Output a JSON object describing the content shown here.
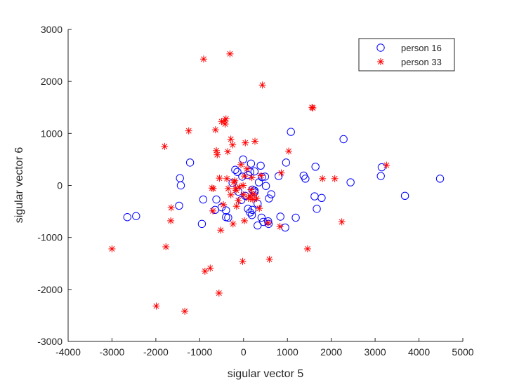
{
  "chart_data": {
    "type": "scatter",
    "xlabel": "sigular vector 5",
    "ylabel": "sigular vector 6",
    "xlim": [
      -4000,
      5000
    ],
    "ylim": [
      -3000,
      3000
    ],
    "xticks": [
      -4000,
      -3000,
      -2000,
      -1000,
      0,
      1000,
      2000,
      3000,
      4000,
      5000
    ],
    "yticks": [
      -3000,
      -2000,
      -1000,
      0,
      1000,
      2000,
      3000
    ],
    "grid": false,
    "legend_position": "top-right",
    "series": [
      {
        "name": "person 16",
        "marker": "circle",
        "color": "#0000ff",
        "points": [
          [
            -2650,
            -610
          ],
          [
            -2450,
            -590
          ],
          [
            -1450,
            140
          ],
          [
            -1430,
            0
          ],
          [
            -1470,
            -390
          ],
          [
            -1220,
            440
          ],
          [
            -920,
            -270
          ],
          [
            -950,
            -740
          ],
          [
            -650,
            -470
          ],
          [
            -620,
            -270
          ],
          [
            -500,
            -420
          ],
          [
            -400,
            -610
          ],
          [
            -400,
            -480
          ],
          [
            -350,
            -620
          ],
          [
            -250,
            50
          ],
          [
            -190,
            300
          ],
          [
            -140,
            260
          ],
          [
            -120,
            -120
          ],
          [
            -10,
            500
          ],
          [
            -30,
            170
          ],
          [
            -50,
            -280
          ],
          [
            40,
            -200
          ],
          [
            100,
            200
          ],
          [
            100,
            -450
          ],
          [
            150,
            260
          ],
          [
            150,
            -520
          ],
          [
            170,
            420
          ],
          [
            190,
            -570
          ],
          [
            200,
            -470
          ],
          [
            200,
            -80
          ],
          [
            250,
            -100
          ],
          [
            250,
            -130
          ],
          [
            250,
            270
          ],
          [
            320,
            -350
          ],
          [
            320,
            -770
          ],
          [
            350,
            60
          ],
          [
            390,
            380
          ],
          [
            420,
            160
          ],
          [
            410,
            -620
          ],
          [
            450,
            -700
          ],
          [
            490,
            170
          ],
          [
            510,
            -10
          ],
          [
            560,
            -690
          ],
          [
            570,
            -740
          ],
          [
            580,
            -250
          ],
          [
            630,
            -170
          ],
          [
            800,
            180
          ],
          [
            840,
            -600
          ],
          [
            950,
            -810
          ],
          [
            970,
            440
          ],
          [
            1080,
            1030
          ],
          [
            1190,
            -620
          ],
          [
            1370,
            190
          ],
          [
            1410,
            130
          ],
          [
            1640,
            360
          ],
          [
            1620,
            -210
          ],
          [
            1670,
            -450
          ],
          [
            1780,
            -240
          ],
          [
            2280,
            890
          ],
          [
            2440,
            60
          ],
          [
            3130,
            180
          ],
          [
            3150,
            350
          ],
          [
            3680,
            -200
          ],
          [
            4480,
            130
          ]
        ]
      },
      {
        "name": "person 33",
        "marker": "star",
        "color": "#ff0000",
        "points": [
          [
            -3000,
            -1220
          ],
          [
            -1990,
            -2320
          ],
          [
            -1800,
            750
          ],
          [
            -1770,
            -1180
          ],
          [
            -1660,
            -680
          ],
          [
            -1650,
            -430
          ],
          [
            -1340,
            -2420
          ],
          [
            -1250,
            1050
          ],
          [
            -910,
            2430
          ],
          [
            -880,
            -1650
          ],
          [
            -760,
            -1590
          ],
          [
            -720,
            -50
          ],
          [
            -700,
            -490
          ],
          [
            -690,
            -60
          ],
          [
            -640,
            1070
          ],
          [
            -620,
            670
          ],
          [
            -600,
            590
          ],
          [
            -560,
            -2070
          ],
          [
            -550,
            140
          ],
          [
            -520,
            -860
          ],
          [
            -500,
            1230
          ],
          [
            -460,
            -370
          ],
          [
            -430,
            1250
          ],
          [
            -420,
            1180
          ],
          [
            -400,
            1280
          ],
          [
            -380,
            130
          ],
          [
            -360,
            650
          ],
          [
            -350,
            -60
          ],
          [
            -310,
            2530
          ],
          [
            -290,
            -180
          ],
          [
            -290,
            890
          ],
          [
            -250,
            780
          ],
          [
            -240,
            -740
          ],
          [
            -220,
            60
          ],
          [
            -200,
            90
          ],
          [
            -180,
            -60
          ],
          [
            -170,
            -90
          ],
          [
            -160,
            -400
          ],
          [
            -120,
            -290
          ],
          [
            -100,
            -30
          ],
          [
            -60,
            400
          ],
          [
            -20,
            -1460
          ],
          [
            -10,
            0
          ],
          [
            0,
            -180
          ],
          [
            20,
            180
          ],
          [
            20,
            -680
          ],
          [
            40,
            820
          ],
          [
            80,
            320
          ],
          [
            110,
            -250
          ],
          [
            150,
            -200
          ],
          [
            170,
            -80
          ],
          [
            190,
            150
          ],
          [
            210,
            -270
          ],
          [
            240,
            -170
          ],
          [
            260,
            850
          ],
          [
            300,
            -250
          ],
          [
            360,
            -440
          ],
          [
            400,
            190
          ],
          [
            430,
            1930
          ],
          [
            560,
            -720
          ],
          [
            590,
            -1420
          ],
          [
            830,
            -790
          ],
          [
            860,
            240
          ],
          [
            1030,
            660
          ],
          [
            1460,
            -1220
          ],
          [
            1560,
            1500
          ],
          [
            1580,
            1490
          ],
          [
            1800,
            130
          ],
          [
            2080,
            130
          ],
          [
            2240,
            -700
          ],
          [
            3260,
            390
          ]
        ]
      }
    ]
  }
}
